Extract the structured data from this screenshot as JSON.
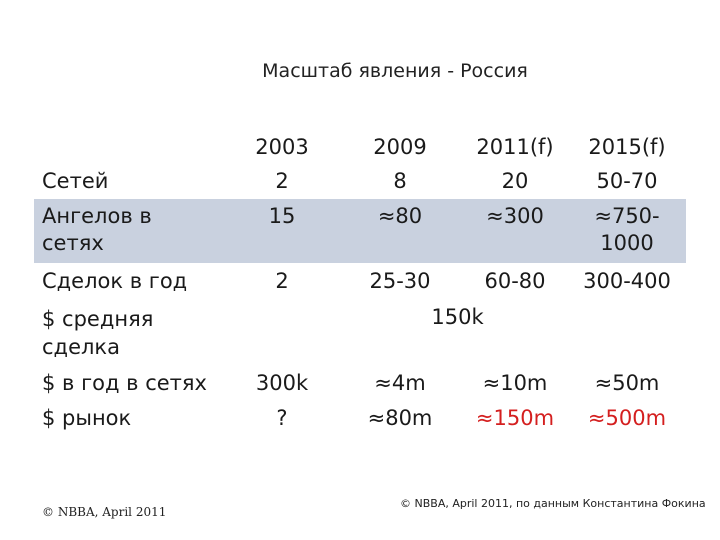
{
  "title": "Масштаб явления - Россия",
  "years": [
    "2003",
    "2009",
    "2011(f)",
    "2015(f)"
  ],
  "rows": {
    "networks": {
      "label": "Сетей",
      "values": [
        "2",
        "8",
        "20",
        "50-70"
      ]
    },
    "angels": {
      "label_line1": "Ангелов в",
      "label_line2": "сетях",
      "values": [
        "15",
        "≈80",
        "≈300"
      ],
      "last_line1": "≈750-",
      "last_line2": "1000"
    },
    "deals": {
      "label": "Сделок в год",
      "values": [
        "2",
        "25-30",
        "60-80",
        "300-400"
      ]
    },
    "avg_deal": {
      "label_line1": "$ средняя",
      "label_line2": "сделка",
      "value": "150k"
    },
    "per_year": {
      "label": "$ в год в сетях",
      "values": [
        "300k",
        "≈4m",
        "≈10m",
        "≈50m"
      ]
    },
    "market": {
      "label": "$ рынок",
      "values": [
        "?",
        "≈80m",
        "≈150m",
        "≈500m"
      ]
    }
  },
  "footer": {
    "left": "© NBBA, April 2011",
    "right": "© NBBA, April 2011, по данным Константина Фокина"
  },
  "colors": {
    "highlight_band": "#c9d1df",
    "accent_red": "#d41f1f"
  }
}
